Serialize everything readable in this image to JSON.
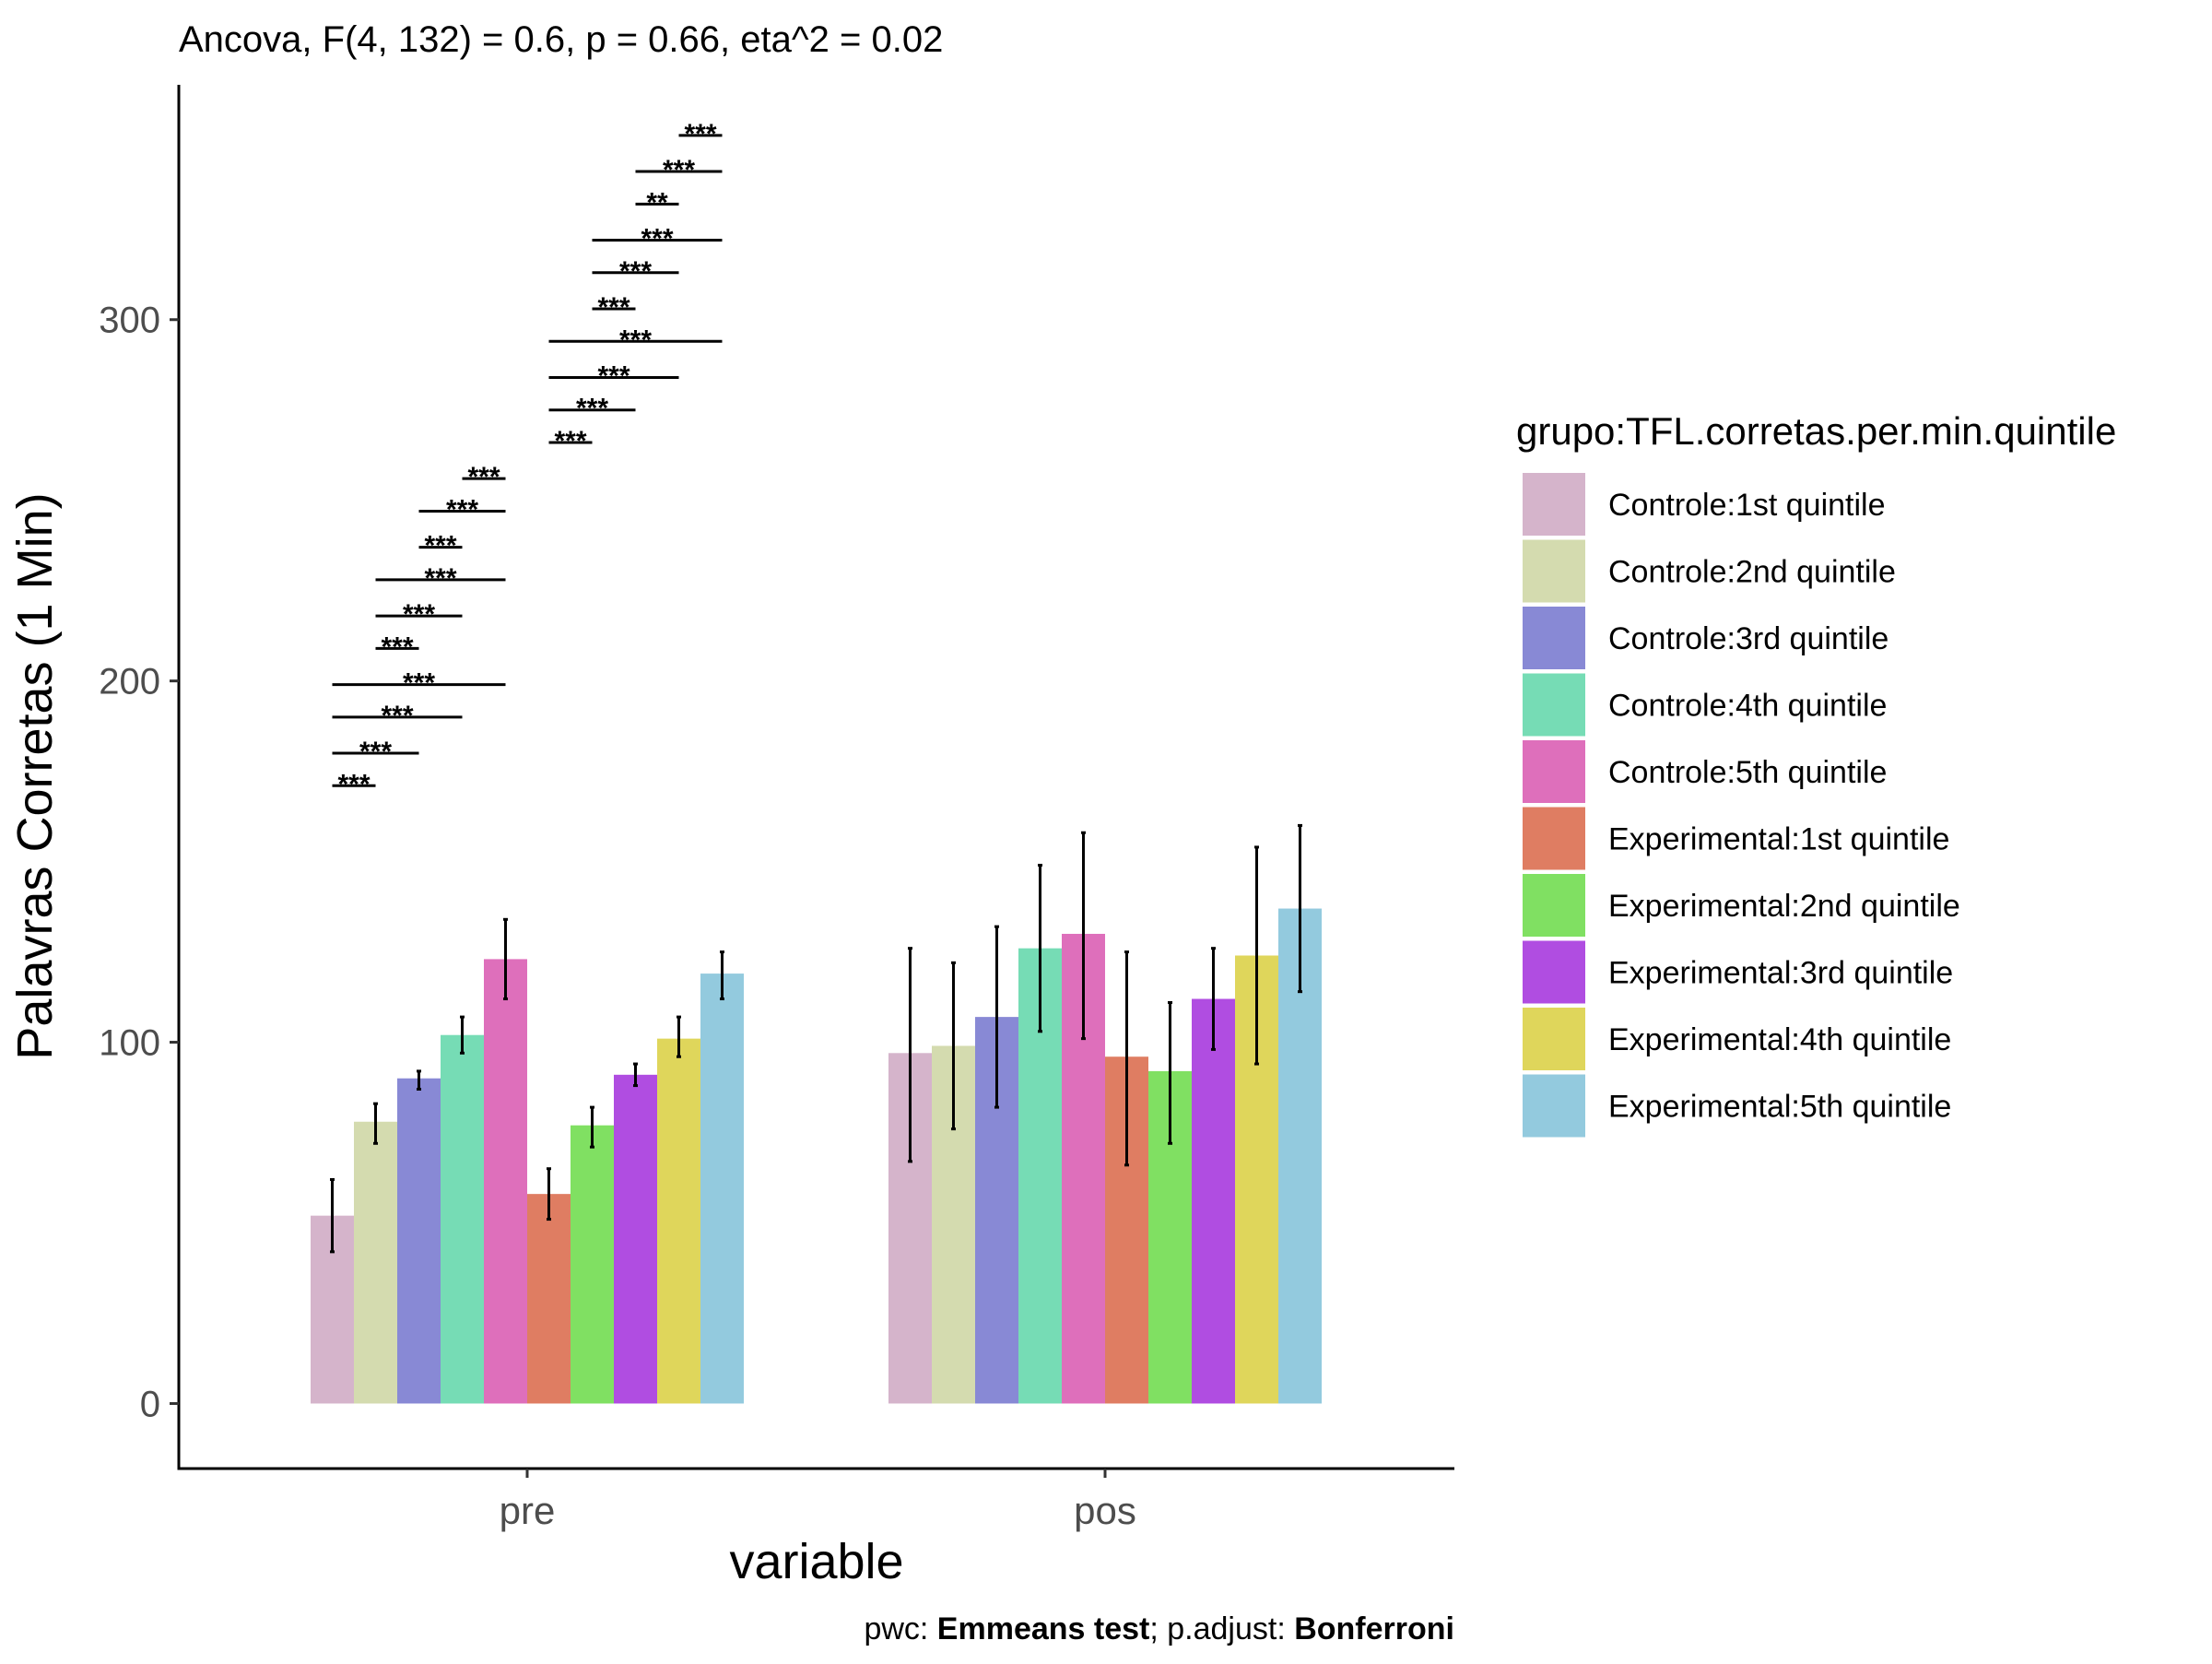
{
  "chart_data": {
    "type": "bar",
    "title": "Ancova, F(4, 132) = 0.6, p = 0.66, eta^2 = 0.02",
    "xlabel": "variable",
    "ylabel": "Palavras Corretas (1 Min)",
    "caption": {
      "pwc_label": "pwc: ",
      "pwc_value": "Emmeans test",
      "sep": "; p.adjust: ",
      "adjust_value": "Bonferroni"
    },
    "categories": [
      "pre",
      "pos"
    ],
    "ylim": [
      -18,
      365
    ],
    "yticks": [
      0,
      100,
      200,
      300
    ],
    "grid": false,
    "legend": {
      "title": "grupo:TFL.corretas.per.min.quintile",
      "placement": "right"
    },
    "series": [
      {
        "name": "Controle:1st quintile",
        "color": "#d5b4cb",
        "values": [
          52,
          97
        ],
        "err_low": [
          42,
          67
        ],
        "err_high": [
          62,
          126
        ]
      },
      {
        "name": "Controle:2nd quintile",
        "color": "#d4dbaf",
        "values": [
          78,
          99
        ],
        "err_low": [
          72,
          76
        ],
        "err_high": [
          83,
          122
        ]
      },
      {
        "name": "Controle:3rd quintile",
        "color": "#8889d5",
        "values": [
          90,
          107
        ],
        "err_low": [
          87,
          82
        ],
        "err_high": [
          92,
          132
        ]
      },
      {
        "name": "Controle:4th quintile",
        "color": "#76dcb5",
        "values": [
          102,
          126
        ],
        "err_low": [
          97,
          103
        ],
        "err_high": [
          107,
          149
        ]
      },
      {
        "name": "Controle:5th quintile",
        "color": "#de6fbb",
        "values": [
          123,
          130
        ],
        "err_low": [
          112,
          101
        ],
        "err_high": [
          134,
          158
        ]
      },
      {
        "name": "Experimental:1st quintile",
        "color": "#df7d62",
        "values": [
          58,
          96
        ],
        "err_low": [
          51,
          66
        ],
        "err_high": [
          65,
          125
        ]
      },
      {
        "name": "Experimental:2nd quintile",
        "color": "#80e062",
        "values": [
          77,
          92
        ],
        "err_low": [
          71,
          72
        ],
        "err_high": [
          82,
          111
        ]
      },
      {
        "name": "Experimental:3rd quintile",
        "color": "#b04de1",
        "values": [
          91,
          112
        ],
        "err_low": [
          88,
          98
        ],
        "err_high": [
          94,
          126
        ]
      },
      {
        "name": "Experimental:4th quintile",
        "color": "#dfd65b",
        "values": [
          101,
          124
        ],
        "err_low": [
          96,
          94
        ],
        "err_high": [
          107,
          154
        ]
      },
      {
        "name": "Experimental:5th quintile",
        "color": "#93cade",
        "values": [
          119,
          137
        ],
        "err_low": [
          112,
          114
        ],
        "err_high": [
          125,
          160
        ]
      }
    ],
    "annotations": [
      {
        "category": "pre",
        "from": 0,
        "to": 1,
        "y": 171,
        "label": "***"
      },
      {
        "category": "pre",
        "from": 0,
        "to": 2,
        "y": 180,
        "label": "***"
      },
      {
        "category": "pre",
        "from": 0,
        "to": 3,
        "y": 190,
        "label": "***"
      },
      {
        "category": "pre",
        "from": 0,
        "to": 4,
        "y": 199,
        "label": "***"
      },
      {
        "category": "pre",
        "from": 1,
        "to": 2,
        "y": 209,
        "label": "***"
      },
      {
        "category": "pre",
        "from": 1,
        "to": 3,
        "y": 218,
        "label": "***"
      },
      {
        "category": "pre",
        "from": 1,
        "to": 4,
        "y": 228,
        "label": "***"
      },
      {
        "category": "pre",
        "from": 2,
        "to": 3,
        "y": 237,
        "label": "***"
      },
      {
        "category": "pre",
        "from": 2,
        "to": 4,
        "y": 247,
        "label": "***"
      },
      {
        "category": "pre",
        "from": 3,
        "to": 4,
        "y": 256,
        "label": "***"
      },
      {
        "category": "pre",
        "from": 5,
        "to": 6,
        "y": 266,
        "label": "***"
      },
      {
        "category": "pre",
        "from": 5,
        "to": 7,
        "y": 275,
        "label": "***"
      },
      {
        "category": "pre",
        "from": 5,
        "to": 8,
        "y": 284,
        "label": "***"
      },
      {
        "category": "pre",
        "from": 5,
        "to": 9,
        "y": 294,
        "label": "***"
      },
      {
        "category": "pre",
        "from": 6,
        "to": 7,
        "y": 303,
        "label": "***"
      },
      {
        "category": "pre",
        "from": 6,
        "to": 8,
        "y": 313,
        "label": "***"
      },
      {
        "category": "pre",
        "from": 6,
        "to": 9,
        "y": 322,
        "label": "***"
      },
      {
        "category": "pre",
        "from": 7,
        "to": 8,
        "y": 332,
        "label": "**"
      },
      {
        "category": "pre",
        "from": 7,
        "to": 9,
        "y": 341,
        "label": "***"
      },
      {
        "category": "pre",
        "from": 8,
        "to": 9,
        "y": 351,
        "label": "***"
      }
    ]
  }
}
